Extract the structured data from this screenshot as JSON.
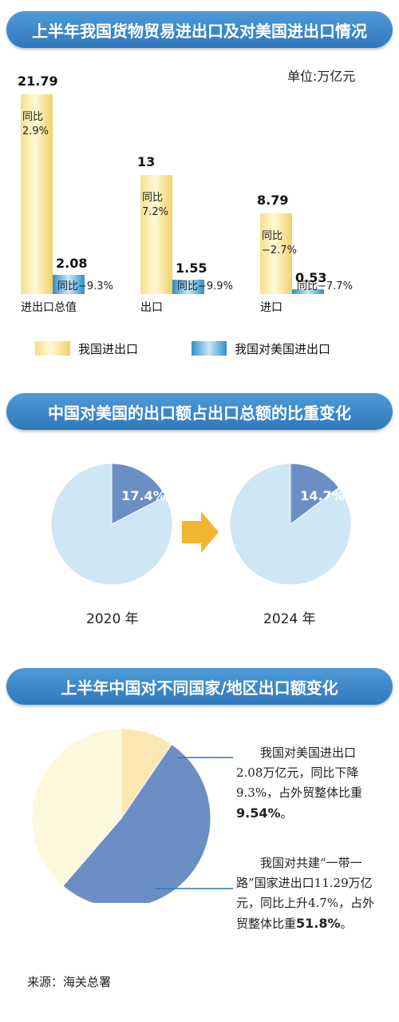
{
  "section1": {
    "title": "上半年我国货物贸易进出口及对美国进出口情况",
    "unit": "单位:万亿元",
    "legend": {
      "total": "我国进出口",
      "us": "我国对美国进出口"
    }
  },
  "section2": {
    "title": "中国对美国的出口额占出口总额的比重变化",
    "left_year": "2020 年",
    "right_year": "2024 年"
  },
  "section3": {
    "title": "上半年中国对不同国家/地区出口额变化",
    "note1": {
      "text": "我国对美国进出口2.08万亿元，同比下降9.3%，占外贸整体比重",
      "bold": "9.54%",
      "end": "。"
    },
    "note2": {
      "text": "我国对共建“一带一路”国家进出口11.29万亿元，同比上升4.7%，占外贸整体比重",
      "bold": "51.8%",
      "end": "。"
    }
  },
  "source": "来源：海关总署",
  "chart_data": [
    {
      "type": "bar",
      "title": "上半年我国货物贸易进出口及对美国进出口情况",
      "ylabel": "单位:万亿元",
      "categories": [
        "进出口总值",
        "出口",
        "进口"
      ],
      "series": [
        {
          "name": "我国进出口",
          "values": [
            21.79,
            13,
            8.79
          ],
          "labels": [
            "21.79",
            "13",
            "8.79"
          ],
          "yoy": [
            "同比\n2.9%",
            "同比\n7.2%",
            "同比\n−2.7%"
          ]
        },
        {
          "name": "我国对美国进出口",
          "values": [
            2.08,
            1.55,
            0.53
          ],
          "labels": [
            "2.08",
            "1.55",
            "0.53"
          ],
          "yoy": [
            "同比−9.3%",
            "同比−9.9%",
            "同比−7.7%"
          ]
        }
      ],
      "colors": {
        "total": "#f5df8a",
        "us": "#3a97cc"
      }
    },
    {
      "type": "pie",
      "title": "中国对美国的出口额占出口总额的比重变化",
      "charts": [
        {
          "label": "2020 年",
          "value": 17.4,
          "text": "17.4%"
        },
        {
          "label": "2024 年",
          "value": 14.7,
          "text": "14.7%"
        }
      ],
      "colors": {
        "share": "#6b8fc4",
        "rest": "#cfe6f5"
      }
    },
    {
      "type": "pie",
      "title": "上半年中国对不同国家/地区出口额变化",
      "values": [
        9.54,
        51.8,
        38.66
      ],
      "colors": [
        "#fbe7b0",
        "#6b8fc4",
        "#fdf7dc"
      ]
    }
  ]
}
